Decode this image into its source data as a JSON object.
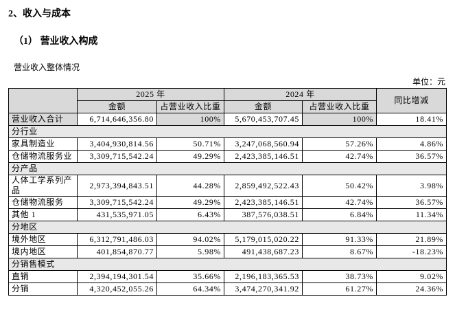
{
  "header": {
    "section_title": "2、收入与成本",
    "subsection_title": "（1） 营业收入构成",
    "caption": "营业收入整体情况",
    "unit": "单位：元"
  },
  "table": {
    "head": {
      "year_a": "2025 年",
      "year_b": "2024 年",
      "change": "同比增减",
      "amount_a": "金额",
      "share_a": "占营业收入比重",
      "amount_b": "金额",
      "share_b": "占营业收入比重"
    },
    "rows": [
      [
        "营业收入合计",
        "6,714,646,356.80",
        "100%",
        "5,670,453,707.45",
        "100%",
        "18.41%"
      ],
      [
        "分行业"
      ],
      [
        "家具制造业",
        "3,404,930,814.56",
        "50.71%",
        "3,247,068,560.94",
        "57.26%",
        "4.86%"
      ],
      [
        "仓储物流服务业",
        "3,309,715,542.24",
        "49.29%",
        "2,423,385,146.51",
        "42.74%",
        "36.57%"
      ],
      [
        "分产品"
      ],
      [
        "人体工学系列产品",
        "2,973,394,843.51",
        "44.28%",
        "2,859,492,522.43",
        "50.42%",
        "3.98%"
      ],
      [
        "仓储物流服务",
        "3,309,715,542.24",
        "49.29%",
        "2,423,385,146.51",
        "42.74%",
        "36.57%"
      ],
      [
        "其他 1",
        "431,535,971.05",
        "6.43%",
        "387,576,038.51",
        "6.84%",
        "11.34%"
      ],
      [
        "分地区"
      ],
      [
        "境外地区",
        "6,312,791,486.03",
        "94.02%",
        "5,179,015,020.22",
        "91.33%",
        "21.89%"
      ],
      [
        "境内地区",
        "401,854,870.77",
        "5.98%",
        "491,438,687.23",
        "8.67%",
        "-18.23%"
      ],
      [
        "分销售模式"
      ],
      [
        "直销",
        "2,394,194,301.54",
        "35.66%",
        "2,196,183,365.53",
        "38.73%",
        "9.02%"
      ],
      [
        "分销",
        "4,320,452,055.26",
        "64.34%",
        "3,474,270,341.92",
        "61.27%",
        "24.36%"
      ]
    ]
  }
}
